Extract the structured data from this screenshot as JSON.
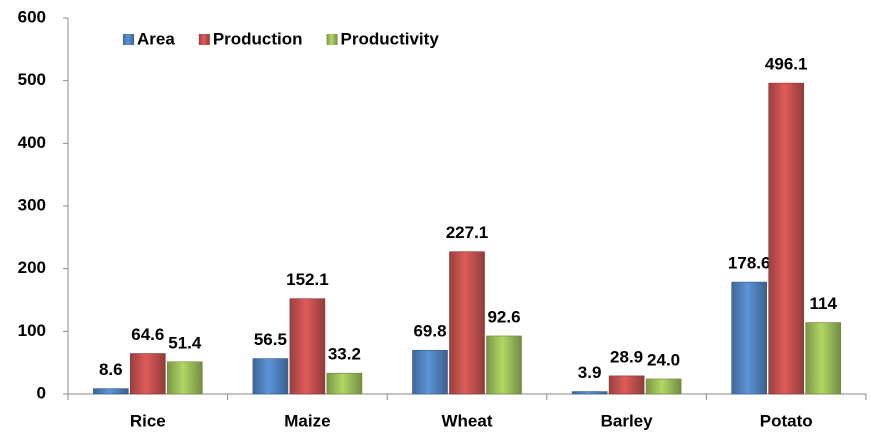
{
  "chart_data": {
    "type": "bar",
    "categories": [
      "Rice",
      "Maize",
      "Wheat",
      "Barley",
      "Potato"
    ],
    "series": [
      {
        "name": "Area",
        "color": "#4f81bd",
        "values": [
          8.6,
          56.5,
          69.8,
          3.9,
          178.6
        ]
      },
      {
        "name": "Production",
        "color": "#c0504d",
        "values": [
          64.6,
          152.1,
          227.1,
          28.9,
          496.1
        ]
      },
      {
        "name": "Productivity",
        "color": "#9bbb59",
        "values": [
          51.4,
          33.2,
          92.6,
          24.0,
          114
        ],
        "value_labels": [
          "51.4",
          "33.2",
          "92.6",
          "24.0",
          "114"
        ]
      }
    ],
    "ylim": [
      0,
      600
    ],
    "yticks": [
      0,
      100,
      200,
      300,
      400,
      500,
      600
    ],
    "grid": false,
    "legend": "top-left"
  }
}
